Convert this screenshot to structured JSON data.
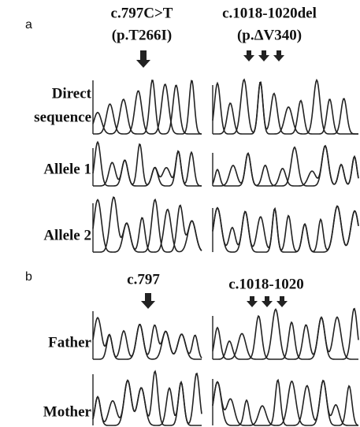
{
  "panel_a": {
    "label": "a",
    "mutation_1": {
      "name": "c.797C>T",
      "protein": "(p.T266I)"
    },
    "mutation_2": {
      "name": "c.1018-1020del",
      "protein": "(p.ΔV340)"
    },
    "rows": [
      {
        "label_lines": [
          "Direct",
          "sequence"
        ]
      },
      {
        "label_lines": [
          "Allele 1"
        ]
      },
      {
        "label_lines": [
          "Allele 2"
        ]
      }
    ]
  },
  "panel_b": {
    "label": "b",
    "mutation_1": {
      "name": "c.797"
    },
    "mutation_2": {
      "name": "c.1018-1020"
    },
    "rows": [
      {
        "label_lines": [
          "Father"
        ]
      },
      {
        "label_lines": [
          "Mother"
        ]
      }
    ]
  }
}
